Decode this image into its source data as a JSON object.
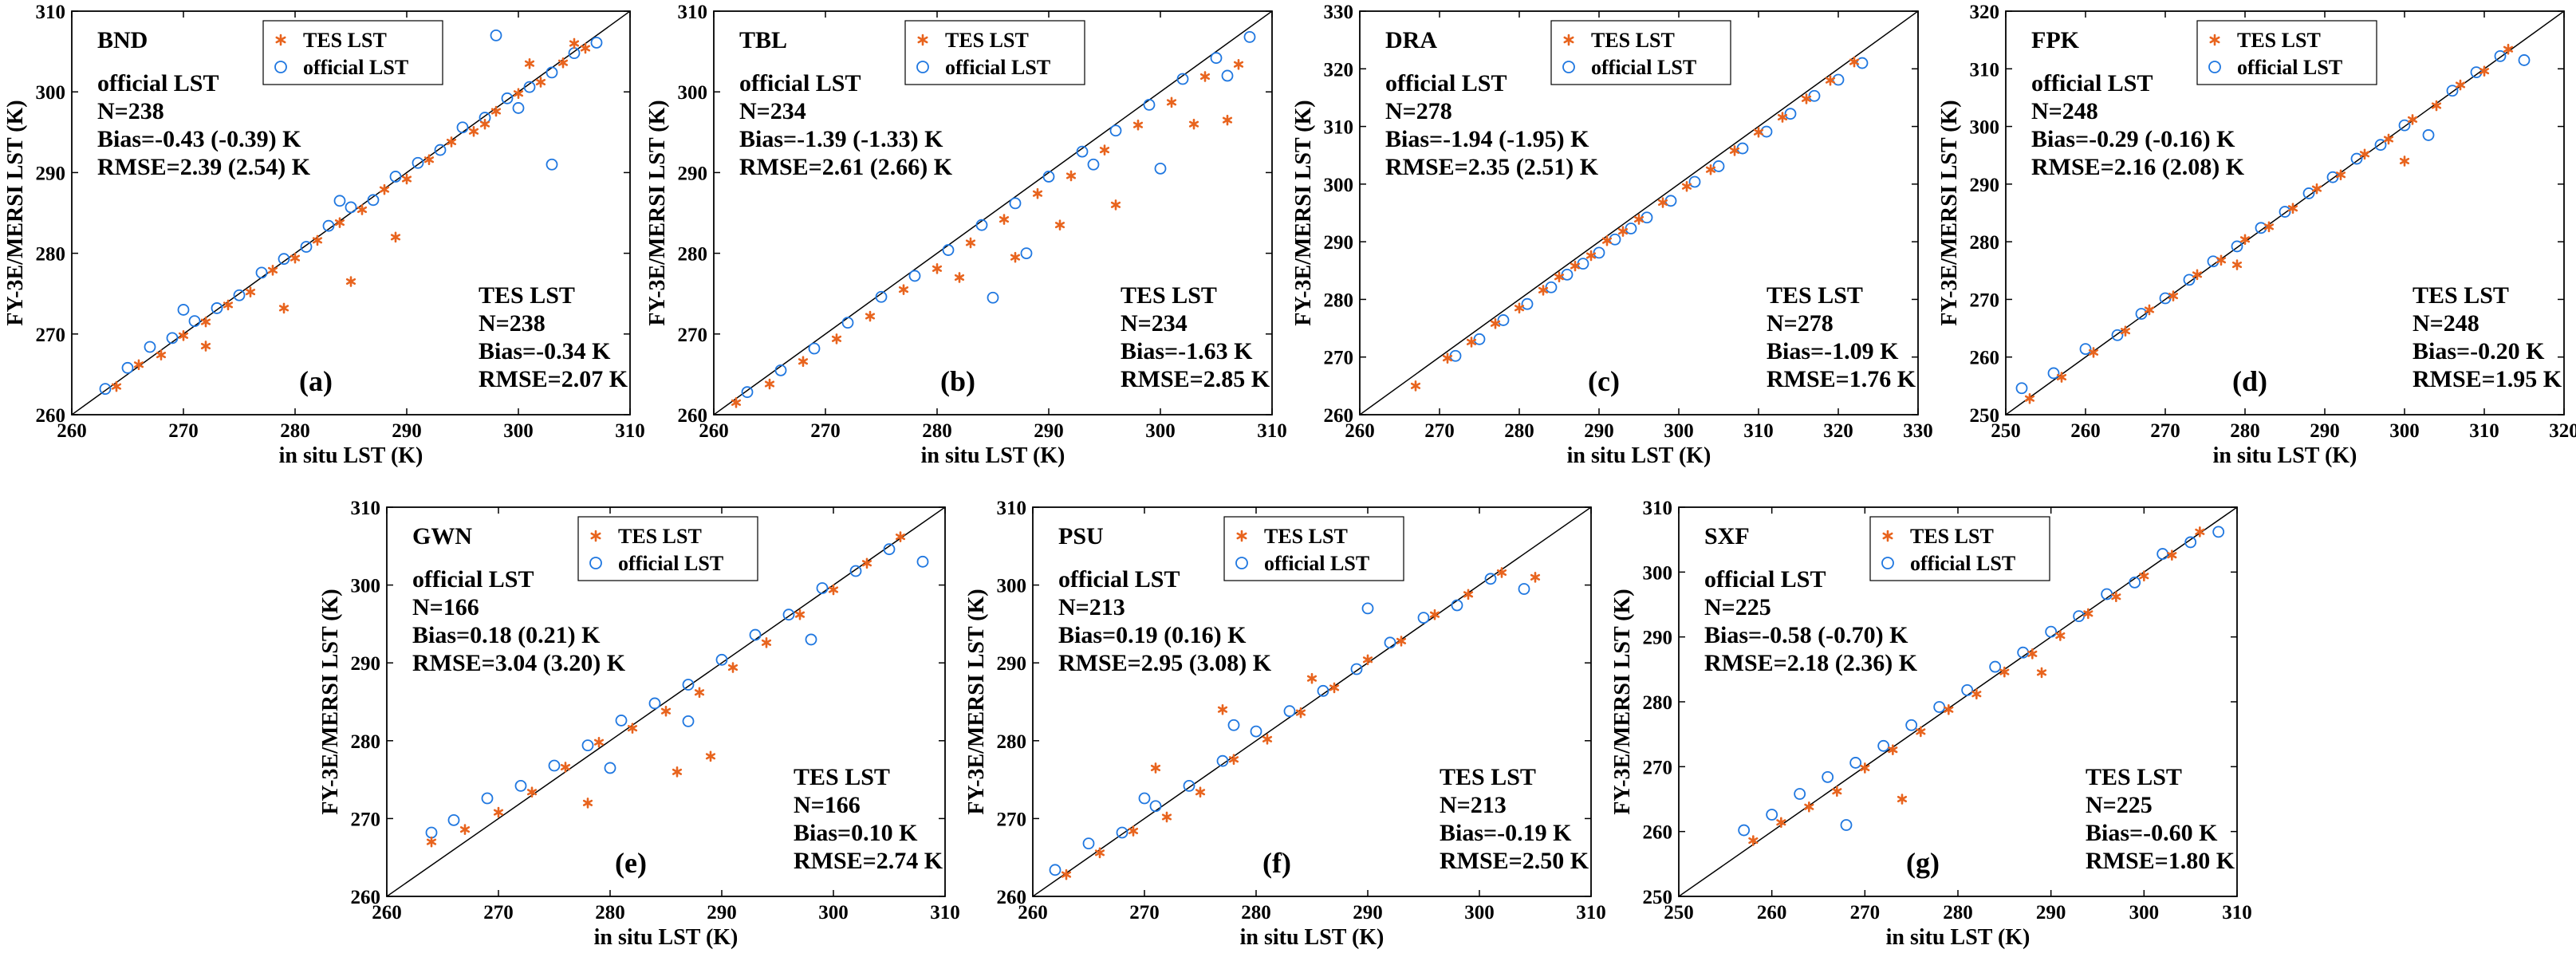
{
  "legend": {
    "tes": "TES LST",
    "official": "official LST"
  },
  "colors": {
    "tes": "#e8641e",
    "official": "#1f77e0",
    "axes": "#000000"
  },
  "chart_data": [
    {
      "type": "scatter",
      "site": "BND",
      "letter": "(a)",
      "xlabel": "in situ LST (K)",
      "ylabel": "FY-3E/MERSI LST (K)",
      "xlim": [
        260,
        310
      ],
      "ylim": [
        260,
        310
      ],
      "xticks": [
        260,
        270,
        280,
        290,
        300,
        310
      ],
      "yticks": [
        260,
        270,
        280,
        290,
        300,
        310
      ],
      "official": {
        "title": "official LST",
        "n": "N=238",
        "bias": "Bias=-0.43 (-0.39) K",
        "rmse": "RMSE=2.39 (2.54) K"
      },
      "tes": {
        "title": "TES LST",
        "n": "N=238",
        "bias": "Bias=-0.34 K",
        "rmse": "RMSE=2.07 K"
      },
      "series": [
        {
          "name": "TES LST",
          "x": [
            264,
            266,
            268,
            270,
            272,
            274,
            276,
            278,
            280,
            282,
            284,
            286,
            288,
            290,
            292,
            294,
            296,
            298,
            300,
            302,
            304,
            306,
            272,
            279,
            285,
            289,
            297,
            301,
            305
          ],
          "y": [
            263.5,
            266.2,
            267.4,
            269.8,
            271.5,
            273.6,
            275.2,
            277.9,
            279.4,
            281.6,
            283.8,
            285.4,
            287.9,
            289.2,
            291.6,
            293.8,
            295.1,
            297.6,
            299.8,
            301.2,
            303.6,
            305.4,
            268.5,
            273.2,
            276.5,
            282.0,
            296.0,
            303.5,
            306.0
          ]
        },
        {
          "name": "official LST",
          "x": [
            263,
            265,
            267,
            269,
            271,
            273,
            275,
            277,
            279,
            281,
            283,
            285,
            287,
            289,
            291,
            293,
            295,
            297,
            299,
            301,
            303,
            305,
            307,
            270,
            284,
            298,
            303,
            300
          ],
          "y": [
            263.2,
            265.8,
            268.4,
            269.5,
            271.6,
            273.2,
            274.8,
            277.6,
            279.3,
            280.8,
            283.4,
            285.7,
            286.6,
            289.5,
            291.2,
            292.8,
            295.6,
            296.8,
            299.2,
            300.6,
            302.4,
            304.8,
            306.1,
            273.0,
            286.5,
            307.0,
            291.0,
            298.0
          ]
        }
      ]
    },
    {
      "type": "scatter",
      "site": "TBL",
      "letter": "(b)",
      "xlabel": "in situ LST (K)",
      "ylabel": "",
      "xlim": [
        260,
        310
      ],
      "ylim": [
        260,
        310
      ],
      "xticks": [
        260,
        270,
        280,
        290,
        300,
        310
      ],
      "yticks": [
        260,
        270,
        280,
        290,
        300,
        310
      ],
      "official": {
        "title": "official LST",
        "n": "N=234",
        "bias": "Bias=-1.39 (-1.33) K",
        "rmse": "RMSE=2.61 (2.66) K"
      },
      "tes": {
        "title": "TES LST",
        "n": "N=234",
        "bias": "Bias=-1.63 K",
        "rmse": "RMSE=2.85 K"
      },
      "series": [
        {
          "name": "TES LST",
          "x": [
            262,
            265,
            268,
            271,
            274,
            277,
            280,
            283,
            286,
            289,
            292,
            295,
            298,
            301,
            304,
            307,
            282,
            287,
            291,
            296,
            303,
            306
          ],
          "y": [
            261.5,
            263.8,
            266.6,
            269.4,
            272.2,
            275.5,
            278.1,
            281.3,
            284.2,
            287.4,
            289.6,
            292.8,
            295.9,
            298.7,
            301.9,
            303.4,
            277.0,
            279.5,
            283.5,
            286.0,
            296.0,
            296.5
          ]
        },
        {
          "name": "official LST",
          "x": [
            263,
            266,
            269,
            272,
            275,
            278,
            281,
            284,
            287,
            290,
            293,
            296,
            299,
            302,
            305,
            308,
            285,
            288,
            294,
            300,
            306
          ],
          "y": [
            262.8,
            265.5,
            268.2,
            271.4,
            274.6,
            277.2,
            280.4,
            283.5,
            286.2,
            289.5,
            292.6,
            295.2,
            298.4,
            301.6,
            304.2,
            306.8,
            274.5,
            280.0,
            291.0,
            290.5,
            302.0
          ]
        }
      ]
    },
    {
      "type": "scatter",
      "site": "DRA",
      "letter": "(c)",
      "xlabel": "in situ LST (K)",
      "ylabel": "",
      "xlim": [
        260,
        330
      ],
      "ylim": [
        260,
        330
      ],
      "xticks": [
        260,
        270,
        280,
        290,
        300,
        310,
        320,
        330
      ],
      "yticks": [
        260,
        270,
        280,
        290,
        300,
        310,
        320,
        330
      ],
      "official": {
        "title": "official LST",
        "n": "N=278",
        "bias": "Bias=-1.94 (-1.95) K",
        "rmse": "RMSE=2.35 (2.51) K"
      },
      "tes": {
        "title": "TES LST",
        "n": "N=278",
        "bias": "Bias=-1.09 K",
        "rmse": "RMSE=1.76 K"
      },
      "series": [
        {
          "name": "TES LST",
          "x": [
            267,
            271,
            274,
            277,
            280,
            283,
            285,
            287,
            289,
            291,
            293,
            295,
            298,
            301,
            304,
            307,
            310,
            313,
            316,
            319,
            322
          ],
          "y": [
            265.0,
            269.8,
            272.6,
            275.8,
            278.5,
            281.6,
            283.9,
            285.8,
            287.6,
            290.2,
            291.8,
            293.9,
            296.8,
            299.6,
            302.5,
            305.8,
            309.0,
            311.6,
            314.8,
            318.0,
            321.2
          ]
        },
        {
          "name": "official LST",
          "x": [
            272,
            275,
            278,
            281,
            284,
            286,
            288,
            290,
            292,
            294,
            296,
            299,
            302,
            305,
            308,
            311,
            314,
            317,
            320,
            323
          ],
          "y": [
            270.2,
            273.1,
            276.4,
            279.2,
            282.1,
            284.3,
            286.2,
            288.1,
            290.4,
            292.3,
            294.2,
            297.1,
            300.4,
            303.1,
            306.2,
            309.1,
            312.2,
            315.3,
            318.1,
            321.0
          ]
        }
      ]
    },
    {
      "type": "scatter",
      "site": "FPK",
      "letter": "(d)",
      "xlabel": "in situ LST (K)",
      "ylabel": "",
      "xlim": [
        250,
        320
      ],
      "ylim": [
        250,
        320
      ],
      "xticks": [
        250,
        260,
        270,
        280,
        290,
        300,
        310,
        320
      ],
      "yticks": [
        250,
        260,
        270,
        280,
        290,
        300,
        310,
        320
      ],
      "official": {
        "title": "official LST",
        "n": "N=248",
        "bias": "Bias=-0.29 (-0.16) K",
        "rmse": "RMSE=2.16 (2.08) K"
      },
      "tes": {
        "title": "TES LST",
        "n": "N=248",
        "bias": "Bias=-0.20 K",
        "rmse": "RMSE=1.95 K"
      },
      "series": [
        {
          "name": "TES LST",
          "x": [
            253,
            257,
            261,
            265,
            268,
            271,
            274,
            277,
            280,
            283,
            286,
            289,
            292,
            295,
            298,
            301,
            304,
            307,
            310,
            313,
            279,
            300
          ],
          "y": [
            252.8,
            256.5,
            260.8,
            264.5,
            268.2,
            270.6,
            274.3,
            276.8,
            280.4,
            282.6,
            285.8,
            289.2,
            291.6,
            295.2,
            297.8,
            301.2,
            303.6,
            307.2,
            309.6,
            313.4,
            276.0,
            294.0
          ]
        },
        {
          "name": "official LST",
          "x": [
            252,
            256,
            260,
            264,
            267,
            270,
            273,
            276,
            279,
            282,
            285,
            288,
            291,
            294,
            297,
            300,
            303,
            306,
            309,
            312,
            315
          ],
          "y": [
            254.6,
            257.2,
            261.4,
            263.8,
            267.5,
            270.2,
            273.4,
            276.6,
            279.2,
            282.4,
            285.2,
            288.4,
            291.2,
            294.4,
            296.8,
            300.2,
            298.5,
            306.2,
            309.4,
            312.2,
            311.5
          ]
        }
      ]
    },
    {
      "type": "scatter",
      "site": "GWN",
      "letter": "(e)",
      "xlabel": "in situ LST (K)",
      "ylabel": "FY-3E/MERSI LST (K)",
      "xlim": [
        260,
        310
      ],
      "ylim": [
        260,
        310
      ],
      "xticks": [
        260,
        270,
        280,
        290,
        300,
        310
      ],
      "yticks": [
        260,
        270,
        280,
        290,
        300,
        310
      ],
      "official": {
        "title": "official LST",
        "n": "N=166",
        "bias": "Bias=0.18 (0.21) K",
        "rmse": "RMSE=3.04 (3.20) K"
      },
      "tes": {
        "title": "TES LST",
        "n": "N=166",
        "bias": "Bias=0.10 K",
        "rmse": "RMSE=2.74 K"
      },
      "series": [
        {
          "name": "TES LST",
          "x": [
            264,
            267,
            270,
            273,
            276,
            279,
            282,
            285,
            288,
            291,
            294,
            297,
            300,
            303,
            306,
            286,
            289,
            278
          ],
          "y": [
            267.0,
            268.6,
            270.8,
            273.4,
            276.6,
            279.8,
            281.6,
            283.8,
            286.2,
            289.4,
            292.6,
            296.2,
            299.4,
            302.8,
            306.2,
            276.0,
            278.0,
            272.0
          ]
        },
        {
          "name": "official LST",
          "x": [
            264,
            266,
            269,
            272,
            275,
            278,
            281,
            284,
            287,
            290,
            293,
            296,
            299,
            302,
            305,
            308,
            280,
            287,
            298
          ],
          "y": [
            268.2,
            269.8,
            272.6,
            274.2,
            276.8,
            279.4,
            282.6,
            284.8,
            287.2,
            290.4,
            293.6,
            296.2,
            299.6,
            301.8,
            304.6,
            303.0,
            276.5,
            282.5,
            293.0
          ]
        }
      ]
    },
    {
      "type": "scatter",
      "site": "PSU",
      "letter": "(f)",
      "xlabel": "in situ LST (K)",
      "ylabel": "FY-3E/MERSI LST (K)",
      "xlim": [
        260,
        310
      ],
      "ylim": [
        260,
        310
      ],
      "xticks": [
        260,
        270,
        280,
        290,
        300,
        310
      ],
      "yticks": [
        260,
        270,
        280,
        290,
        300,
        310
      ],
      "official": {
        "title": "official LST",
        "n": "N=213",
        "bias": "Bias=0.19 (0.16) K",
        "rmse": "RMSE=2.95 (3.08) K"
      },
      "tes": {
        "title": "TES LST",
        "n": "N=213",
        "bias": "Bias=-0.19 K",
        "rmse": "RMSE=2.50 K"
      },
      "series": [
        {
          "name": "TES LST",
          "x": [
            263,
            266,
            269,
            272,
            275,
            278,
            281,
            284,
            287,
            290,
            293,
            296,
            299,
            302,
            305,
            271,
            277,
            285
          ],
          "y": [
            262.8,
            265.6,
            268.4,
            270.2,
            273.4,
            277.6,
            280.2,
            283.6,
            286.8,
            290.4,
            292.8,
            296.2,
            298.8,
            301.6,
            301.0,
            276.5,
            284.0,
            288.0
          ]
        },
        {
          "name": "official LST",
          "x": [
            262,
            265,
            268,
            271,
            274,
            277,
            280,
            283,
            286,
            289,
            292,
            295,
            298,
            301,
            304,
            270,
            278,
            290
          ],
          "y": [
            263.4,
            266.8,
            268.2,
            271.6,
            274.2,
            277.4,
            281.2,
            283.8,
            286.4,
            289.2,
            292.6,
            295.8,
            297.4,
            300.8,
            299.5,
            272.6,
            282.0,
            297.0
          ]
        }
      ]
    },
    {
      "type": "scatter",
      "site": "SXF",
      "letter": "(g)",
      "xlabel": "in situ LST (K)",
      "ylabel": "FY-3E/MERSI LST (K)",
      "xlim": [
        250,
        310
      ],
      "ylim": [
        250,
        310
      ],
      "xticks": [
        250,
        260,
        270,
        280,
        290,
        300,
        310
      ],
      "yticks": [
        250,
        260,
        270,
        280,
        290,
        300,
        310
      ],
      "official": {
        "title": "official LST",
        "n": "N=225",
        "bias": "Bias=-0.58 (-0.70) K",
        "rmse": "RMSE=2.18 (2.36) K"
      },
      "tes": {
        "title": "TES LST",
        "n": "N=225",
        "bias": "Bias=-0.60 K",
        "rmse": "RMSE=1.80 K"
      },
      "series": [
        {
          "name": "TES LST",
          "x": [
            258,
            261,
            264,
            267,
            270,
            273,
            276,
            279,
            282,
            285,
            288,
            291,
            294,
            297,
            300,
            303,
            306,
            274,
            289
          ],
          "y": [
            258.6,
            261.4,
            263.8,
            266.2,
            269.8,
            272.6,
            275.4,
            278.8,
            281.2,
            284.6,
            287.4,
            290.2,
            293.6,
            296.2,
            299.4,
            302.6,
            306.2,
            265.0,
            284.5
          ]
        },
        {
          "name": "official LST",
          "x": [
            257,
            260,
            263,
            266,
            269,
            272,
            275,
            278,
            281,
            284,
            287,
            290,
            293,
            296,
            299,
            302,
            305,
            308,
            268
          ],
          "y": [
            260.2,
            262.6,
            265.8,
            268.4,
            270.6,
            273.2,
            276.4,
            279.2,
            281.8,
            285.4,
            287.6,
            290.8,
            293.2,
            296.6,
            298.4,
            302.8,
            304.6,
            306.2,
            261.0
          ]
        }
      ]
    }
  ]
}
